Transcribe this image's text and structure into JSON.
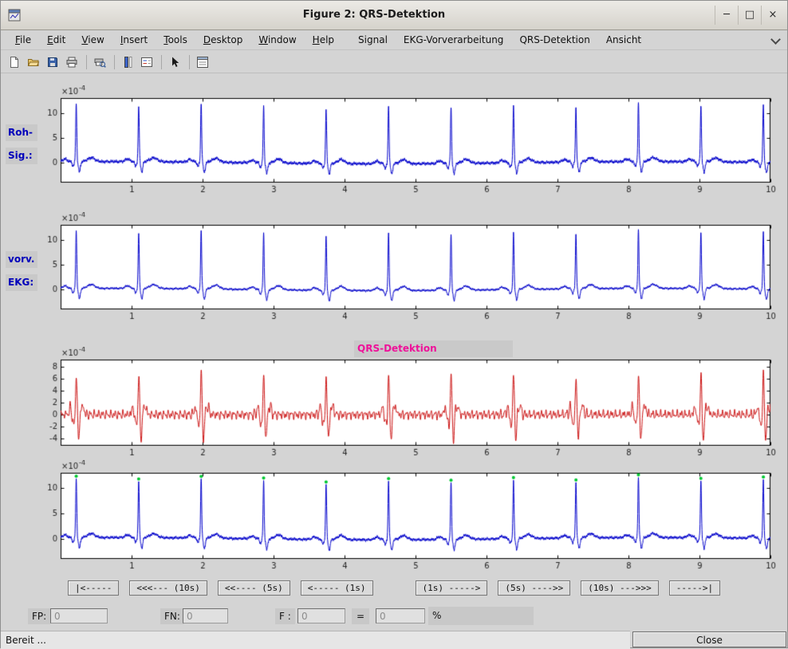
{
  "window": {
    "title": "Figure 2: QRS-Detektion",
    "minimize_glyph": "─",
    "maximize_glyph": "□",
    "close_glyph": "×"
  },
  "menubar": {
    "items": [
      {
        "label": "File",
        "underline": 0
      },
      {
        "label": "Edit",
        "underline": 0
      },
      {
        "label": "View",
        "underline": 0
      },
      {
        "label": "Insert",
        "underline": 0
      },
      {
        "label": "Tools",
        "underline": 0
      },
      {
        "label": "Desktop",
        "underline": 0
      },
      {
        "label": "Window",
        "underline": 0
      },
      {
        "label": "Help",
        "underline": 0
      },
      {
        "label": "Signal",
        "underline": -1
      },
      {
        "label": "EKG-Vorverarbeitung",
        "underline": -1
      },
      {
        "label": "QRS-Detektion",
        "underline": -1
      },
      {
        "label": "Ansicht",
        "underline": -1
      }
    ]
  },
  "toolbar": {
    "icons": [
      "new-document",
      "open-folder",
      "save",
      "print",
      "print-preview",
      "insert-colorbar",
      "insert-legend",
      "pointer",
      "property-editor"
    ]
  },
  "side_labels": {
    "raw": [
      "Roh-",
      "Sig.:"
    ],
    "pre": [
      "vorv.",
      "EKG:"
    ]
  },
  "plot3_title": "QRS-Detektion",
  "charts": {
    "xlim": [
      0,
      10
    ],
    "xticks": [
      1,
      2,
      3,
      4,
      5,
      6,
      7,
      8,
      9,
      10
    ],
    "exponent": {
      "base": "×10",
      "power": "-4"
    },
    "beat_times": [
      0.22,
      1.1,
      1.98,
      2.86,
      3.74,
      4.62,
      5.5,
      6.38,
      7.26,
      8.14,
      9.02,
      9.9
    ],
    "r_amps": [
      11.6,
      11.1,
      11.9,
      11.3,
      10.9,
      11.7,
      11.2,
      11.5,
      11.0,
      11.8,
      11.4,
      11.5
    ],
    "plots": [
      {
        "id": "raw",
        "type": "ecg",
        "color": "#0000cc",
        "noise": 1.0,
        "ylim": [
          -4,
          13
        ],
        "yticks": [
          0,
          5,
          10
        ]
      },
      {
        "id": "pre",
        "type": "ecg",
        "color": "#0000cc",
        "noise": 0.7,
        "ylim": [
          -4,
          13
        ],
        "yticks": [
          0,
          5,
          10
        ]
      },
      {
        "id": "filt",
        "type": "filtered",
        "color": "#cc1111",
        "noise": 1.0,
        "ylim": [
          -5.2,
          9.2
        ],
        "yticks": [
          -4,
          -2,
          0,
          2,
          4,
          6,
          8
        ]
      },
      {
        "id": "det",
        "type": "ecg",
        "color": "#0000cc",
        "noise": 0.9,
        "ylim": [
          -4,
          13
        ],
        "yticks": [
          0,
          5,
          10
        ],
        "markers": true,
        "marker_color": "#00c832"
      }
    ]
  },
  "nav": {
    "buttons": [
      "|<-----",
      "<<<--- (10s)",
      "<<---- (5s)",
      "<----- (1s)",
      "(1s) ----->",
      "(5s) ---->>",
      "(10s) --->>>",
      "----->|"
    ]
  },
  "fields": {
    "fp_label": "FP:",
    "fp_value": "0",
    "fn_label": "FN:",
    "fn_value": "0",
    "f_label": "F :",
    "f_value": "0",
    "equals_label": "=",
    "result_value": "0",
    "percent_label": "%"
  },
  "statusbar": {
    "text": "Bereit ...",
    "close_label": "Close"
  }
}
